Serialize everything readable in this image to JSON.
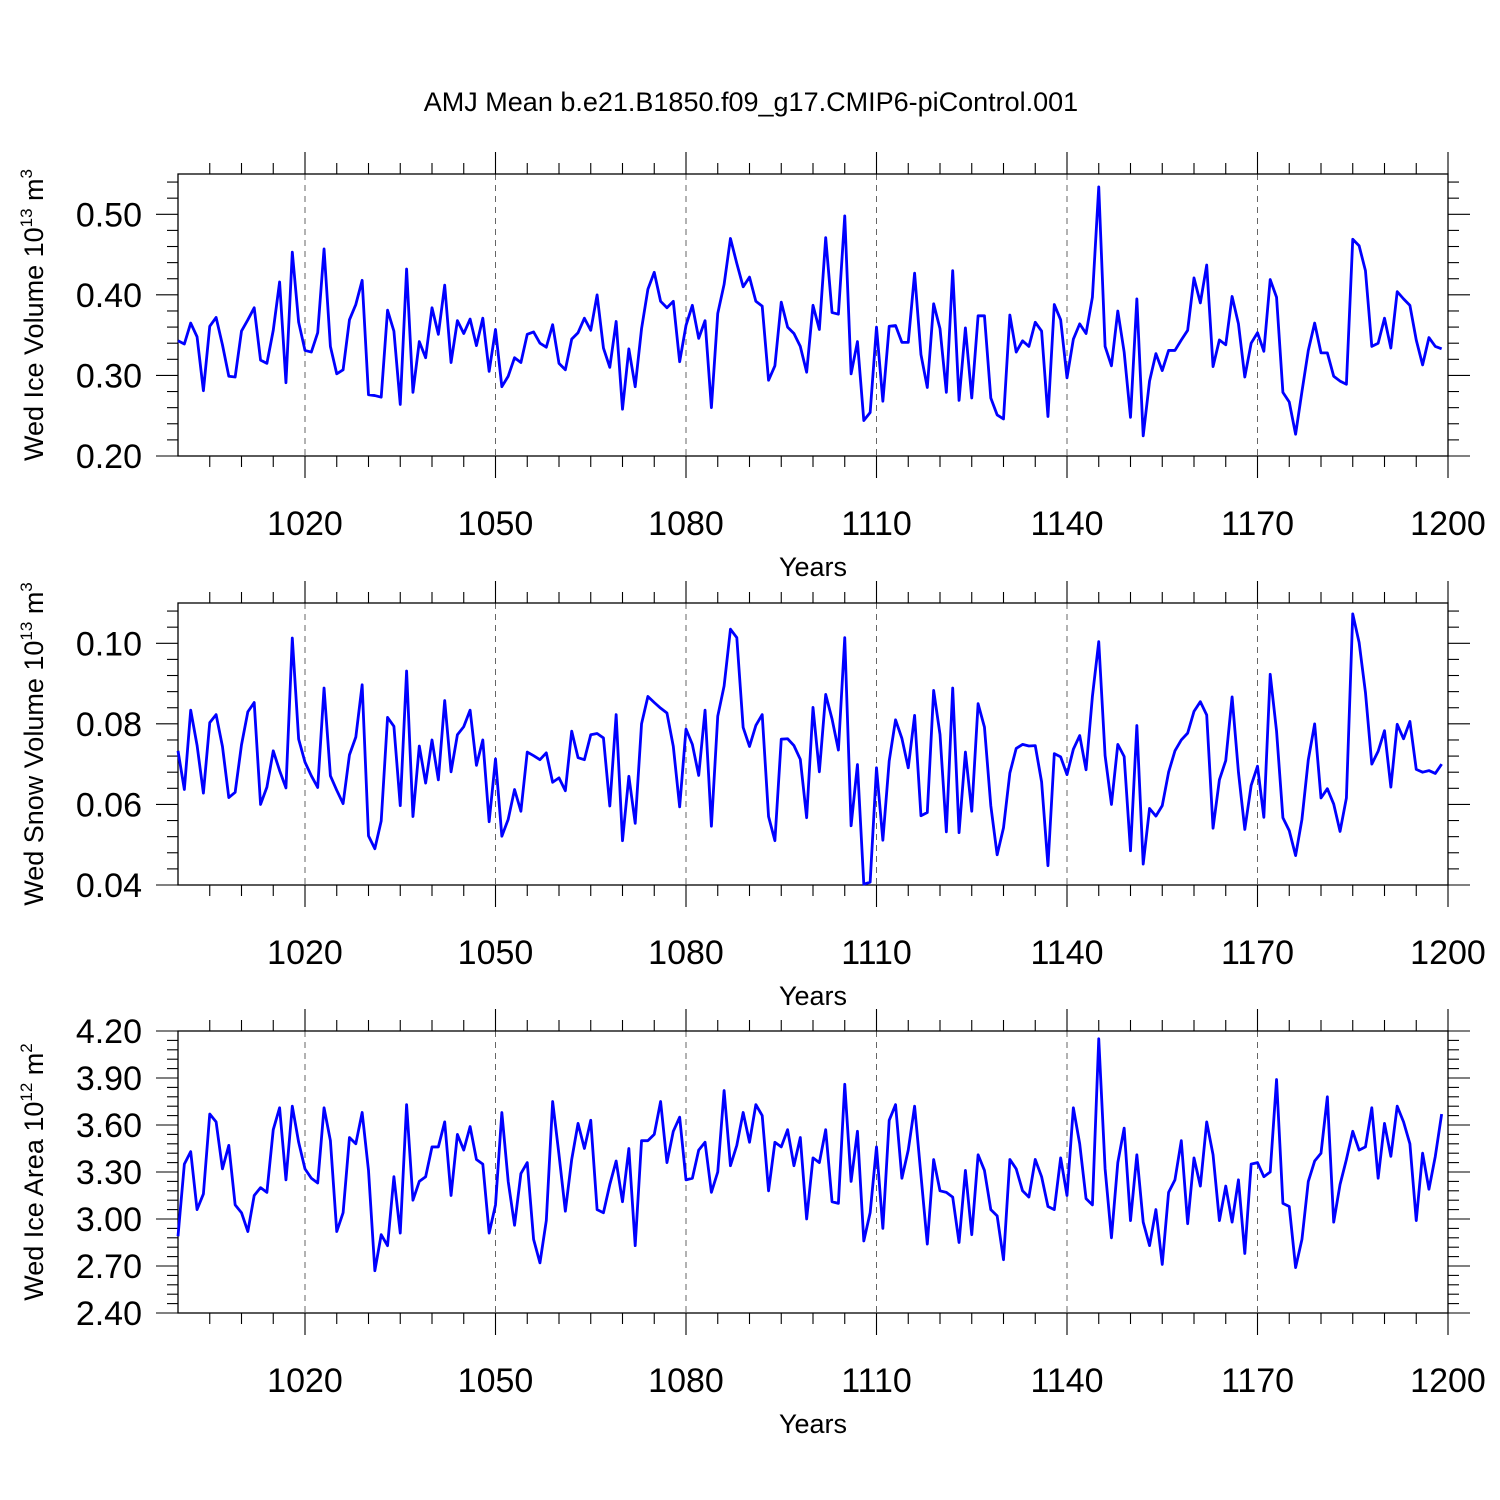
{
  "title": "AMJ Mean b.e21.B1850.f09_g17.CMIP6-piControl.001",
  "colors": {
    "line": "#0000ff",
    "frame": "#000000",
    "grid": "#666666"
  },
  "chart_data": [
    {
      "type": "line",
      "xlabel": "Years",
      "ylabel_main": "Wed Ice Volume 10",
      "ylabel_exp": "13",
      "ylabel_unit": " m",
      "ylabel_unit_exp": "3",
      "xlim": [
        1000,
        1200
      ],
      "ylim": [
        0.2,
        0.55
      ],
      "xticks": [
        1020,
        1050,
        1080,
        1110,
        1140,
        1170,
        1200
      ],
      "xtick_labels": [
        "1020",
        "1050",
        "1080",
        "1110",
        "1140",
        "1170",
        "1200"
      ],
      "yticks": [
        0.2,
        0.3,
        0.4,
        0.5
      ],
      "ytick_labels": [
        "0.20",
        "0.30",
        "0.40",
        "0.50"
      ],
      "grid": "vertical dashed at major x ticks",
      "series": [
        {
          "name": "Wed Ice Volume",
          "x_start": 1000,
          "x_step": 1,
          "values": [
            0.343,
            0.339,
            0.365,
            0.348,
            0.281,
            0.361,
            0.372,
            0.338,
            0.299,
            0.298,
            0.355,
            0.369,
            0.384,
            0.319,
            0.315,
            0.356,
            0.416,
            0.291,
            0.453,
            0.366,
            0.331,
            0.329,
            0.353,
            0.457,
            0.336,
            0.302,
            0.307,
            0.369,
            0.388,
            0.418,
            0.276,
            0.275,
            0.273,
            0.381,
            0.355,
            0.264,
            0.432,
            0.279,
            0.342,
            0.322,
            0.384,
            0.351,
            0.412,
            0.316,
            0.368,
            0.352,
            0.37,
            0.337,
            0.371,
            0.305,
            0.357,
            0.286,
            0.299,
            0.322,
            0.316,
            0.351,
            0.354,
            0.34,
            0.335,
            0.363,
            0.315,
            0.307,
            0.345,
            0.353,
            0.371,
            0.356,
            0.4,
            0.334,
            0.31,
            0.367,
            0.258,
            0.333,
            0.286,
            0.358,
            0.407,
            0.428,
            0.392,
            0.384,
            0.392,
            0.317,
            0.362,
            0.387,
            0.346,
            0.368,
            0.26,
            0.377,
            0.413,
            0.47,
            0.439,
            0.41,
            0.422,
            0.392,
            0.386,
            0.294,
            0.312,
            0.391,
            0.36,
            0.352,
            0.336,
            0.304,
            0.387,
            0.357,
            0.471,
            0.378,
            0.376,
            0.498,
            0.302,
            0.342,
            0.244,
            0.254,
            0.36,
            0.268,
            0.361,
            0.362,
            0.341,
            0.341,
            0.427,
            0.326,
            0.285,
            0.389,
            0.358,
            0.279,
            0.43,
            0.269,
            0.359,
            0.272,
            0.374,
            0.374,
            0.272,
            0.251,
            0.246,
            0.375,
            0.329,
            0.343,
            0.336,
            0.366,
            0.355,
            0.249,
            0.388,
            0.369,
            0.297,
            0.345,
            0.364,
            0.352,
            0.397,
            0.534,
            0.336,
            0.312,
            0.38,
            0.329,
            0.248,
            0.395,
            0.225,
            0.293,
            0.327,
            0.306,
            0.331,
            0.331,
            0.344,
            0.356,
            0.421,
            0.39,
            0.437,
            0.311,
            0.344,
            0.338,
            0.398,
            0.364,
            0.298,
            0.34,
            0.353,
            0.33,
            0.419,
            0.397,
            0.279,
            0.267,
            0.227,
            0.28,
            0.331,
            0.365,
            0.328,
            0.328,
            0.299,
            0.293,
            0.289,
            0.469,
            0.461,
            0.43,
            0.336,
            0.34,
            0.371,
            0.334,
            0.404,
            0.395,
            0.387,
            0.344,
            0.313,
            0.347,
            0.336,
            0.333
          ]
        }
      ]
    },
    {
      "type": "line",
      "xlabel": "Years",
      "ylabel_main": "Wed Snow Volume 10",
      "ylabel_exp": "13",
      "ylabel_unit": " m",
      "ylabel_unit_exp": "3",
      "xlim": [
        1000,
        1200
      ],
      "ylim": [
        0.04,
        0.11
      ],
      "xticks": [
        1020,
        1050,
        1080,
        1110,
        1140,
        1170,
        1200
      ],
      "xtick_labels": [
        "1020",
        "1050",
        "1080",
        "1110",
        "1140",
        "1170",
        "1200"
      ],
      "yticks": [
        0.04,
        0.06,
        0.08,
        0.1
      ],
      "ytick_labels": [
        "0.04",
        "0.06",
        "0.08",
        "0.10"
      ],
      "grid": "vertical dashed at major x ticks",
      "series": [
        {
          "name": "Wed Snow Volume",
          "x_start": 1000,
          "x_step": 1,
          "values": [
            0.0733,
            0.0637,
            0.0834,
            0.0747,
            0.0628,
            0.0803,
            0.0823,
            0.0744,
            0.0617,
            0.063,
            0.0748,
            0.083,
            0.0853,
            0.06,
            0.0643,
            0.0733,
            0.0684,
            0.0641,
            0.1013,
            0.0762,
            0.0705,
            0.0671,
            0.0642,
            0.0889,
            0.0671,
            0.0635,
            0.0602,
            0.0723,
            0.0767,
            0.0897,
            0.0522,
            0.049,
            0.0559,
            0.0816,
            0.0794,
            0.0597,
            0.0931,
            0.057,
            0.0745,
            0.0653,
            0.076,
            0.0661,
            0.0858,
            0.0681,
            0.0773,
            0.0793,
            0.0834,
            0.0697,
            0.076,
            0.0557,
            0.0713,
            0.0521,
            0.0563,
            0.0637,
            0.0583,
            0.073,
            0.0721,
            0.0711,
            0.0728,
            0.0655,
            0.0666,
            0.0634,
            0.0782,
            0.0716,
            0.0711,
            0.0773,
            0.0776,
            0.0765,
            0.0596,
            0.0823,
            0.051,
            0.067,
            0.0553,
            0.08,
            0.0868,
            0.0853,
            0.0839,
            0.0827,
            0.0744,
            0.0594,
            0.0787,
            0.0749,
            0.0672,
            0.0834,
            0.0546,
            0.0819,
            0.0894,
            0.1035,
            0.1014,
            0.0791,
            0.0744,
            0.0796,
            0.0823,
            0.057,
            0.051,
            0.0762,
            0.0763,
            0.0746,
            0.0712,
            0.0567,
            0.0841,
            0.0681,
            0.0873,
            0.0812,
            0.0735,
            0.1014,
            0.0547,
            0.0699,
            0.0402,
            0.0407,
            0.0691,
            0.0511,
            0.0708,
            0.081,
            0.0764,
            0.0691,
            0.0821,
            0.0572,
            0.058,
            0.0883,
            0.0774,
            0.0532,
            0.0889,
            0.053,
            0.073,
            0.0583,
            0.085,
            0.0792,
            0.0597,
            0.0475,
            0.0542,
            0.0678,
            0.0739,
            0.0749,
            0.0745,
            0.0746,
            0.0656,
            0.0448,
            0.0726,
            0.0718,
            0.0674,
            0.0737,
            0.0771,
            0.0686,
            0.0868,
            0.1004,
            0.0721,
            0.06,
            0.0749,
            0.0719,
            0.0485,
            0.0796,
            0.0452,
            0.059,
            0.0571,
            0.0597,
            0.068,
            0.0733,
            0.076,
            0.0777,
            0.0831,
            0.0855,
            0.0822,
            0.0541,
            0.0661,
            0.0709,
            0.0867,
            0.068,
            0.0538,
            0.0647,
            0.0695,
            0.0568,
            0.0923,
            0.0782,
            0.0567,
            0.0535,
            0.0473,
            0.0563,
            0.0711,
            0.08,
            0.0616,
            0.0639,
            0.0601,
            0.0533,
            0.0616,
            0.1073,
            0.1002,
            0.0878,
            0.07,
            0.0732,
            0.0783,
            0.0643,
            0.0799,
            0.0763,
            0.0806,
            0.0687,
            0.068,
            0.0684,
            0.0677,
            0.07
          ]
        }
      ]
    },
    {
      "type": "line",
      "xlabel": "Years",
      "ylabel_main": "Wed Ice Area 10",
      "ylabel_exp": "12",
      "ylabel_unit": " m",
      "ylabel_unit_exp": "2",
      "xlim": [
        1000,
        1200
      ],
      "ylim": [
        2.4,
        4.2
      ],
      "xticks": [
        1020,
        1050,
        1080,
        1110,
        1140,
        1170,
        1200
      ],
      "xtick_labels": [
        "1020",
        "1050",
        "1080",
        "1110",
        "1140",
        "1170",
        "1200"
      ],
      "yticks": [
        2.4,
        2.7,
        3.0,
        3.3,
        3.6,
        3.9,
        4.2
      ],
      "ytick_labels": [
        "2.40",
        "2.70",
        "3.00",
        "3.30",
        "3.60",
        "3.90",
        "4.20"
      ],
      "grid": "vertical dashed at major x ticks",
      "series": [
        {
          "name": "Wed Ice Area",
          "x_start": 1000,
          "x_step": 1,
          "values": [
            2.89,
            3.35,
            3.43,
            3.06,
            3.16,
            3.67,
            3.62,
            3.32,
            3.47,
            3.09,
            3.04,
            2.92,
            3.15,
            3.2,
            3.17,
            3.57,
            3.71,
            3.25,
            3.72,
            3.49,
            3.32,
            3.26,
            3.23,
            3.71,
            3.5,
            2.92,
            3.04,
            3.52,
            3.48,
            3.68,
            3.31,
            2.67,
            2.9,
            2.83,
            3.27,
            2.91,
            3.73,
            3.12,
            3.24,
            3.27,
            3.46,
            3.46,
            3.62,
            3.15,
            3.54,
            3.44,
            3.59,
            3.38,
            3.35,
            2.91,
            3.09,
            3.68,
            3.24,
            2.96,
            3.29,
            3.36,
            2.87,
            2.72,
            2.99,
            3.75,
            3.41,
            3.05,
            3.38,
            3.61,
            3.45,
            3.63,
            3.06,
            3.04,
            3.22,
            3.37,
            3.11,
            3.45,
            2.83,
            3.5,
            3.5,
            3.54,
            3.75,
            3.36,
            3.56,
            3.65,
            3.25,
            3.26,
            3.44,
            3.49,
            3.17,
            3.3,
            3.82,
            3.34,
            3.47,
            3.68,
            3.49,
            3.73,
            3.66,
            3.18,
            3.49,
            3.46,
            3.57,
            3.34,
            3.52,
            3.0,
            3.39,
            3.36,
            3.57,
            3.11,
            3.1,
            3.86,
            3.24,
            3.56,
            2.86,
            3.04,
            3.46,
            2.94,
            3.63,
            3.73,
            3.26,
            3.44,
            3.72,
            3.28,
            2.84,
            3.38,
            3.18,
            3.17,
            3.14,
            2.85,
            3.31,
            2.9,
            3.41,
            3.31,
            3.06,
            3.02,
            2.74,
            3.38,
            3.32,
            3.18,
            3.14,
            3.38,
            3.27,
            3.08,
            3.06,
            3.39,
            3.15,
            3.71,
            3.48,
            3.13,
            3.09,
            4.15,
            3.32,
            2.88,
            3.36,
            3.58,
            2.99,
            3.41,
            2.98,
            2.83,
            3.06,
            2.71,
            3.17,
            3.25,
            3.5,
            2.97,
            3.39,
            3.21,
            3.62,
            3.41,
            2.99,
            3.21,
            2.98,
            3.25,
            2.78,
            3.35,
            3.36,
            3.27,
            3.3,
            3.89,
            3.1,
            3.08,
            2.69,
            2.87,
            3.24,
            3.37,
            3.42,
            3.78,
            2.98,
            3.22,
            3.38,
            3.56,
            3.44,
            3.46,
            3.71,
            3.26,
            3.61,
            3.4,
            3.72,
            3.62,
            3.48,
            2.99,
            3.42,
            3.19,
            3.4,
            3.67
          ]
        }
      ]
    }
  ]
}
